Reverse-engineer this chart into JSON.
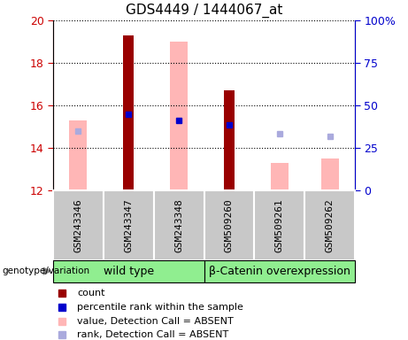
{
  "title": "GDS4449 / 1444067_at",
  "categories": [
    "GSM243346",
    "GSM243347",
    "GSM243348",
    "GSM509260",
    "GSM509261",
    "GSM509262"
  ],
  "ylim_left": [
    12,
    20
  ],
  "ylim_right": [
    0,
    100
  ],
  "yticks_left": [
    12,
    14,
    16,
    18,
    20
  ],
  "yticks_right": [
    0,
    25,
    50,
    75,
    100
  ],
  "left_tick_labels": [
    "12",
    "14",
    "16",
    "18",
    "20"
  ],
  "right_tick_labels": [
    "0",
    "25",
    "50",
    "75",
    "100%"
  ],
  "red_bars": {
    "GSM243347": 19.3,
    "GSM509260": 16.7
  },
  "pink_bars": {
    "GSM243346": 15.3,
    "GSM243348": 19.0,
    "GSM509261": 13.3,
    "GSM509262": 13.5
  },
  "blue_squares": {
    "GSM243347": 15.6,
    "GSM243348": 15.3,
    "GSM509260": 15.1
  },
  "light_blue_squares": {
    "GSM243346": 14.8,
    "GSM509261": 14.65,
    "GSM509262": 14.55
  },
  "bar_bottom": 12,
  "red_bar_width": 0.22,
  "pink_bar_width": 0.35,
  "red_bar_color": "#990000",
  "pink_bar_color": "#FFB6B6",
  "blue_square_color": "#0000CC",
  "light_blue_square_color": "#AAAADD",
  "group1_label": "wild type",
  "group2_label": "β-Catenin overexpression",
  "legend_items": [
    {
      "label": "count",
      "color": "#990000"
    },
    {
      "label": "percentile rank within the sample",
      "color": "#0000CC"
    },
    {
      "label": "value, Detection Call = ABSENT",
      "color": "#FFB6B6"
    },
    {
      "label": "rank, Detection Call = ABSENT",
      "color": "#AAAADD"
    }
  ],
  "left_axis_color": "#CC0000",
  "right_axis_color": "#0000CC",
  "title_fontsize": 11,
  "tick_fontsize": 9,
  "label_fontsize": 8
}
